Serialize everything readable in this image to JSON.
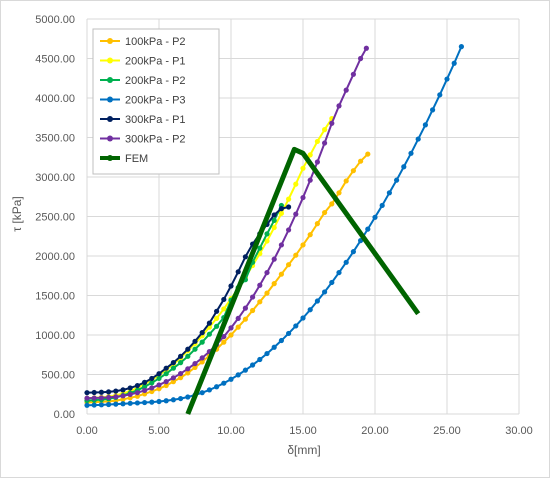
{
  "chart_data": {
    "type": "line",
    "xlabel": "δ[mm]",
    "ylabel": "τ [kPa]",
    "xlim": [
      0,
      30
    ],
    "ylim": [
      0,
      5000
    ],
    "x_ticks": [
      "0.00",
      "5.00",
      "10.00",
      "15.00",
      "20.00",
      "25.00",
      "30.00"
    ],
    "y_ticks": [
      "0.00",
      "500.00",
      "1000.00",
      "1500.00",
      "2000.00",
      "2500.00",
      "3000.00",
      "3500.00",
      "4000.00",
      "4500.00",
      "5000.00"
    ],
    "grid": true,
    "legend_position": "top-left",
    "series": [
      {
        "name": "100kPa - P2",
        "color": "#ffc000",
        "x": [
          0,
          0.5,
          1,
          1.5,
          2,
          2.5,
          3,
          3.5,
          4,
          4.5,
          5,
          5.5,
          6,
          6.5,
          7,
          7.5,
          8,
          8.5,
          9,
          9.5,
          10,
          10.5,
          11,
          11.5,
          12,
          12.5,
          13,
          13.5,
          14,
          14.5,
          15,
          15.5,
          16,
          16.5,
          17,
          17.5,
          18,
          18.5,
          19,
          19.5
        ],
        "y": [
          145,
          150,
          155,
          160,
          170,
          185,
          205,
          225,
          255,
          285,
          320,
          360,
          410,
          460,
          520,
          590,
          660,
          740,
          820,
          910,
          1000,
          1100,
          1200,
          1310,
          1420,
          1530,
          1650,
          1770,
          1890,
          2010,
          2140,
          2270,
          2410,
          2550,
          2660,
          2800,
          2950,
          3080,
          3200,
          3290
        ]
      },
      {
        "name": "200kPa - P1",
        "color": "#ffff00",
        "x": [
          0,
          0.5,
          1,
          1.5,
          2,
          2.5,
          3,
          3.5,
          4,
          4.5,
          5,
          5.5,
          6,
          6.5,
          7,
          7.5,
          8,
          8.5,
          9,
          9.5,
          10,
          10.5,
          11,
          11.5,
          12,
          12.5,
          13,
          13.5,
          14,
          14.5,
          15,
          15.5,
          16,
          16.5,
          17
        ],
        "y": [
          200,
          205,
          210,
          220,
          235,
          260,
          290,
          330,
          380,
          430,
          490,
          560,
          630,
          710,
          800,
          890,
          990,
          1100,
          1210,
          1330,
          1460,
          1590,
          1730,
          1880,
          2030,
          2190,
          2360,
          2540,
          2720,
          2910,
          3110,
          3280,
          3450,
          3600,
          3740
        ]
      },
      {
        "name": "200kPa - P2",
        "color": "#00b050",
        "x": [
          0,
          0.5,
          1,
          1.5,
          2,
          2.5,
          3,
          3.5,
          4,
          4.5,
          5,
          5.5,
          6,
          6.5,
          7,
          7.5,
          8,
          8.5,
          9,
          9.5,
          10,
          10.5,
          11,
          11.5,
          12,
          12.5,
          13,
          13.5
        ],
        "y": [
          170,
          175,
          182,
          192,
          210,
          235,
          265,
          300,
          345,
          395,
          450,
          510,
          580,
          650,
          730,
          820,
          910,
          1010,
          1110,
          1220,
          1440,
          1600,
          1700,
          1920,
          2100,
          2280,
          2450,
          2640
        ]
      },
      {
        "name": "200kPa - P3",
        "color": "#0070c0",
        "x": [
          0,
          0.5,
          1,
          1.5,
          2,
          2.5,
          3,
          3.5,
          4,
          4.5,
          5,
          5.5,
          6,
          6.5,
          7,
          7.5,
          8,
          8.5,
          9,
          9.5,
          10,
          10.5,
          11,
          11.5,
          12,
          12.5,
          13,
          13.5,
          14,
          14.5,
          15,
          15.5,
          16,
          16.5,
          17,
          17.5,
          18,
          18.5,
          19,
          19.5,
          20,
          20.5,
          21,
          21.5,
          22,
          22.5,
          23,
          23.5,
          24,
          24.5,
          25,
          25.5,
          26
        ],
        "y": [
          110,
          113,
          116,
          120,
          125,
          130,
          135,
          140,
          145,
          150,
          158,
          168,
          180,
          195,
          215,
          240,
          270,
          305,
          345,
          390,
          440,
          495,
          555,
          620,
          690,
          765,
          845,
          930,
          1020,
          1115,
          1215,
          1320,
          1430,
          1545,
          1665,
          1790,
          1920,
          2055,
          2195,
          2340,
          2490,
          2640,
          2800,
          2960,
          3130,
          3300,
          3480,
          3660,
          3850,
          4040,
          4240,
          4440,
          4650
        ]
      },
      {
        "name": "300kPa - P1",
        "color": "#002060",
        "x": [
          0,
          0.5,
          1,
          1.5,
          2,
          2.5,
          3,
          3.5,
          4,
          4.5,
          5,
          5.5,
          6,
          6.5,
          7,
          7.5,
          8,
          8.5,
          9,
          9.5,
          10,
          10.5,
          11,
          11.5,
          12,
          12.5,
          13,
          13.5,
          14
        ],
        "y": [
          270,
          272,
          275,
          280,
          290,
          305,
          330,
          360,
          400,
          450,
          510,
          580,
          650,
          730,
          820,
          920,
          1030,
          1150,
          1300,
          1450,
          1620,
          1800,
          1990,
          2150,
          2280,
          2400,
          2520,
          2600,
          2620
        ]
      },
      {
        "name": "300kPa - P2",
        "color": "#7030a0",
        "x": [
          0,
          0.5,
          1,
          1.5,
          2,
          2.5,
          3,
          3.5,
          4,
          4.5,
          5,
          5.5,
          6,
          6.5,
          7,
          7.5,
          8,
          8.5,
          9,
          9.5,
          10,
          10.5,
          11,
          11.5,
          12,
          12.5,
          13,
          13.5,
          14,
          14.5,
          15,
          15.5,
          16,
          16.5,
          17,
          17.5,
          18,
          18.5,
          19,
          19.4
        ],
        "y": [
          200,
          202,
          205,
          210,
          218,
          230,
          248,
          270,
          298,
          330,
          368,
          410,
          458,
          512,
          572,
          638,
          710,
          790,
          880,
          980,
          1090,
          1210,
          1340,
          1480,
          1630,
          1790,
          1960,
          2140,
          2330,
          2530,
          2740,
          2960,
          3190,
          3430,
          3680,
          3900,
          4100,
          4300,
          4500,
          4630
        ]
      },
      {
        "name": "FEM",
        "color": "#006400",
        "x": [
          7.0,
          14.4,
          15.0,
          23.0
        ],
        "y": [
          0,
          3350,
          3300,
          1270
        ]
      }
    ]
  }
}
